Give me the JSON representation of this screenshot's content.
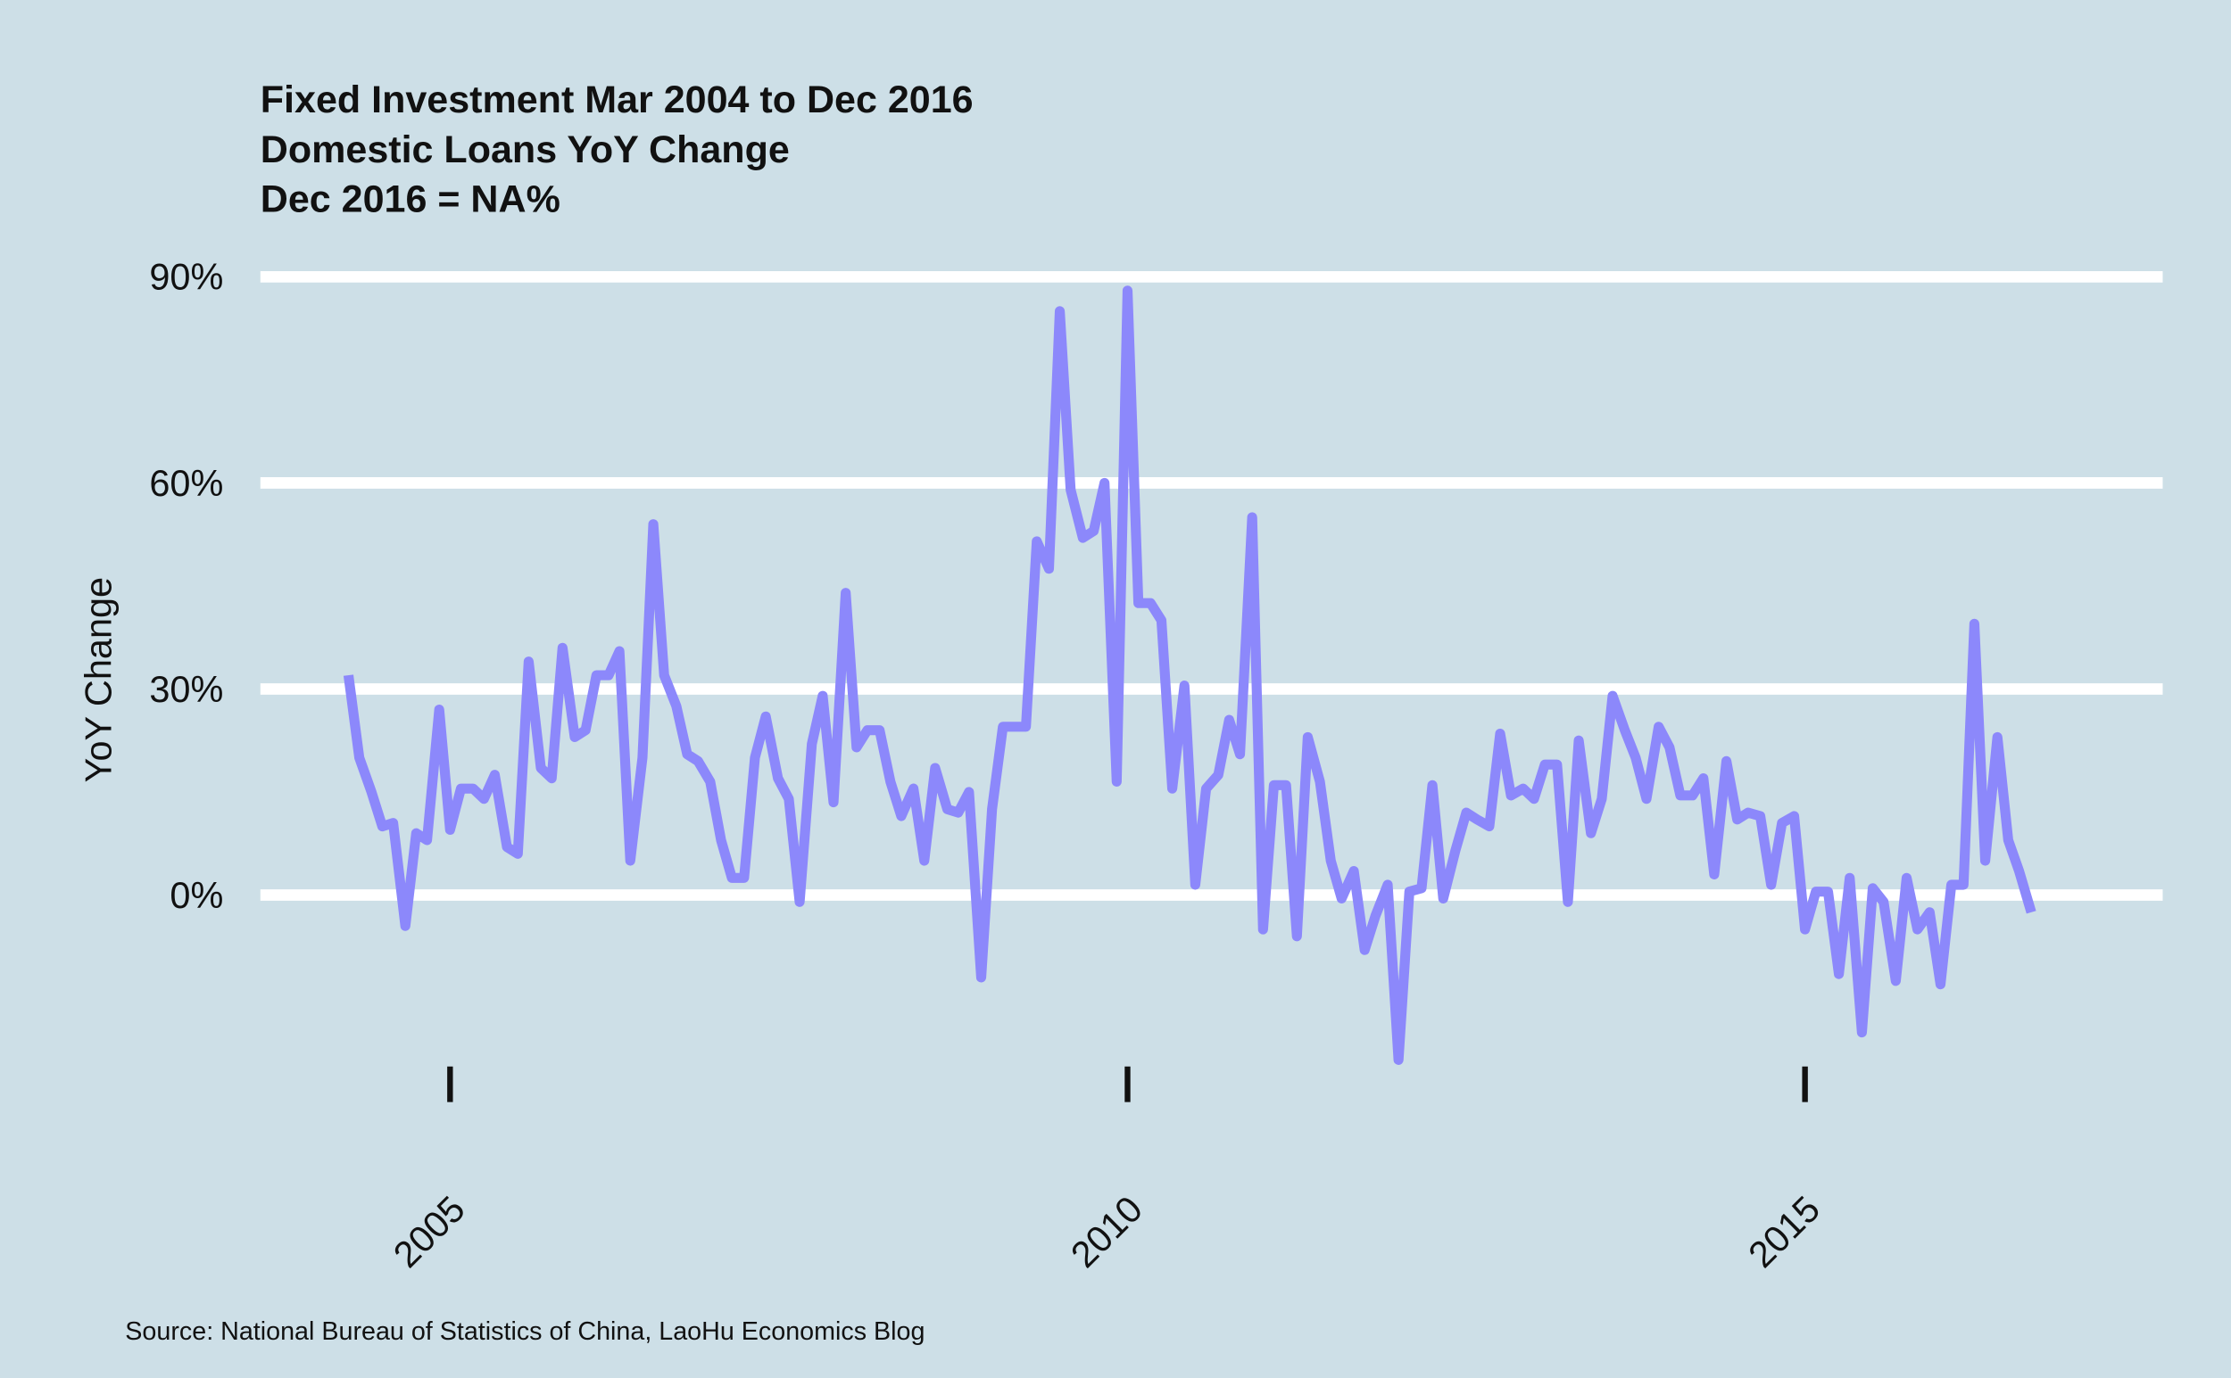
{
  "chart_data": {
    "type": "line",
    "title_lines": [
      "Fixed Investment Mar 2004 to Dec 2016",
      "Domestic Loans YoY Change",
      "Dec 2016 = NA%"
    ],
    "y_label": "YoY Change",
    "source": "Source: National Bureau of Statistics of China, LaoHu Economics Blog",
    "grid": true,
    "xlim": [
      2003.6,
      2017.64
    ],
    "xticks": [
      2005,
      2010,
      2015
    ],
    "ylim": [
      -26,
      92
    ],
    "yticks": [
      {
        "value": 0,
        "label": "0%"
      },
      {
        "value": 30,
        "label": "30%"
      },
      {
        "value": 60,
        "label": "60%"
      },
      {
        "value": 90,
        "label": "90%"
      }
    ],
    "x": [
      2004.25,
      2004.33,
      2004.42,
      2004.5,
      2004.58,
      2004.67,
      2004.75,
      2004.83,
      2004.92,
      2005.0,
      2005.08,
      2005.17,
      2005.25,
      2005.33,
      2005.42,
      2005.5,
      2005.58,
      2005.67,
      2005.75,
      2005.83,
      2005.92,
      2006.0,
      2006.08,
      2006.17,
      2006.25,
      2006.33,
      2006.42,
      2006.5,
      2006.58,
      2006.67,
      2006.75,
      2006.83,
      2006.92,
      2007.0,
      2007.08,
      2007.17,
      2007.25,
      2007.33,
      2007.42,
      2007.5,
      2007.58,
      2007.67,
      2007.75,
      2007.83,
      2007.92,
      2008.0,
      2008.08,
      2008.17,
      2008.25,
      2008.33,
      2008.42,
      2008.5,
      2008.58,
      2008.67,
      2008.75,
      2008.83,
      2008.92,
      2009.0,
      2009.08,
      2009.17,
      2009.25,
      2009.33,
      2009.42,
      2009.5,
      2009.58,
      2009.67,
      2009.75,
      2009.83,
      2009.92,
      2010.0,
      2010.08,
      2010.17,
      2010.25,
      2010.33,
      2010.42,
      2010.5,
      2010.58,
      2010.67,
      2010.75,
      2010.83,
      2010.92,
      2011.0,
      2011.08,
      2011.17,
      2011.25,
      2011.33,
      2011.42,
      2011.5,
      2011.58,
      2011.67,
      2011.75,
      2011.83,
      2011.92,
      2012.0,
      2012.08,
      2012.17,
      2012.25,
      2012.33,
      2012.42,
      2012.5,
      2012.58,
      2012.67,
      2012.75,
      2012.83,
      2012.92,
      2013.0,
      2013.08,
      2013.17,
      2013.25,
      2013.33,
      2013.42,
      2013.5,
      2013.58,
      2013.67,
      2013.75,
      2013.83,
      2013.92,
      2014.0,
      2014.08,
      2014.17,
      2014.25,
      2014.33,
      2014.42,
      2014.5,
      2014.58,
      2014.67,
      2014.75,
      2014.83,
      2014.92,
      2015.0,
      2015.08,
      2015.17,
      2015.25,
      2015.33,
      2015.42,
      2015.5,
      2015.58,
      2015.67,
      2015.75,
      2015.83,
      2015.92,
      2016.0,
      2016.08,
      2016.17,
      2016.25,
      2016.33,
      2016.42,
      2016.5,
      2016.58,
      2016.67
    ],
    "series": [
      {
        "color": "#8c88fb",
        "values": [
          32,
          20,
          15,
          10,
          10.5,
          -4.5,
          9,
          8,
          27,
          9.5,
          15.5,
          15.5,
          14,
          17.5,
          7,
          6,
          34,
          18.5,
          17,
          36,
          23,
          24,
          32,
          32,
          35.5,
          5,
          20,
          54,
          32,
          27.5,
          20.5,
          19.5,
          16.5,
          8,
          2.5,
          2.5,
          20,
          26,
          17,
          14,
          -1,
          22,
          29,
          13.5,
          44,
          21.5,
          24,
          24,
          16.5,
          11.5,
          15.5,
          5,
          18.5,
          12.5,
          12,
          15,
          -12,
          12.5,
          24.5,
          24.5,
          24.5,
          51.5,
          47.5,
          85,
          59,
          52,
          53,
          60,
          16.5,
          88,
          42.5,
          42.5,
          40,
          15.5,
          30.5,
          1.5,
          15.5,
          17.5,
          25.5,
          20.5,
          55,
          -5,
          16,
          16,
          -6,
          23,
          16.5,
          5,
          -0.5,
          3.5,
          -8,
          -3,
          1.5,
          -24,
          0.5,
          1,
          16,
          -0.5,
          6.5,
          12,
          11,
          10,
          23.5,
          14.5,
          15.5,
          14,
          19,
          19,
          -1,
          22.5,
          9,
          14,
          29,
          24,
          20,
          14,
          24.5,
          21.5,
          14.5,
          14.5,
          17,
          3,
          19.5,
          11,
          12,
          11.5,
          1.5,
          10.5,
          11.5,
          -5,
          0.5,
          0.5,
          -11.5,
          2.5,
          -20,
          1,
          -1,
          -12.5,
          2.5,
          -5,
          -2.5,
          -13,
          1.5,
          1.5,
          39.5,
          5,
          23,
          8,
          3.5,
          -2.5
        ]
      }
    ]
  }
}
